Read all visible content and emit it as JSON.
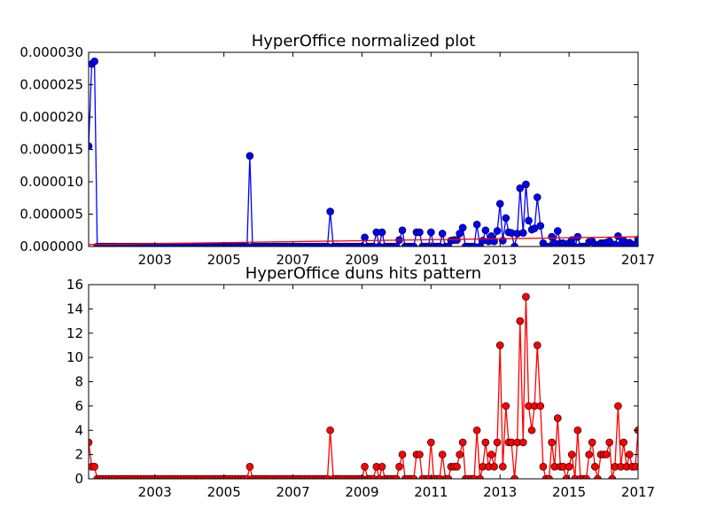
{
  "chart_data": [
    {
      "type": "line",
      "title": "HyperOffice normalized plot",
      "x": [
        2001.08,
        2001.17,
        2001.25,
        2001.33,
        2001.42,
        2001.5,
        2001.58,
        2001.67,
        2001.75,
        2001.83,
        2001.92,
        2002,
        2002.08,
        2002.17,
        2002.25,
        2002.33,
        2002.42,
        2002.5,
        2002.58,
        2002.67,
        2002.75,
        2002.83,
        2002.92,
        2003,
        2003.08,
        2003.17,
        2003.25,
        2003.33,
        2003.42,
        2003.5,
        2003.58,
        2003.67,
        2003.75,
        2003.83,
        2003.92,
        2004,
        2004.08,
        2004.17,
        2004.25,
        2004.33,
        2004.42,
        2004.5,
        2004.58,
        2004.67,
        2004.75,
        2004.83,
        2004.92,
        2005,
        2005.08,
        2005.17,
        2005.25,
        2005.33,
        2005.42,
        2005.5,
        2005.58,
        2005.67,
        2005.75,
        2005.83,
        2005.92,
        2006,
        2006.08,
        2006.17,
        2006.25,
        2006.33,
        2006.42,
        2006.5,
        2006.58,
        2006.67,
        2006.75,
        2006.83,
        2006.92,
        2007,
        2007.08,
        2007.17,
        2007.25,
        2007.33,
        2007.42,
        2007.5,
        2007.58,
        2007.67,
        2007.75,
        2007.83,
        2007.92,
        2008,
        2008.08,
        2008.17,
        2008.25,
        2008.33,
        2008.42,
        2008.5,
        2008.58,
        2008.67,
        2008.75,
        2008.83,
        2008.92,
        2009,
        2009.08,
        2009.17,
        2009.25,
        2009.33,
        2009.42,
        2009.5,
        2009.58,
        2009.67,
        2009.75,
        2009.83,
        2009.92,
        2010,
        2010.08,
        2010.17,
        2010.25,
        2010.33,
        2010.42,
        2010.5,
        2010.58,
        2010.67,
        2010.75,
        2010.83,
        2010.92,
        2011,
        2011.08,
        2011.17,
        2011.25,
        2011.33,
        2011.42,
        2011.5,
        2011.58,
        2011.67,
        2011.75,
        2011.83,
        2011.92,
        2012,
        2012.08,
        2012.17,
        2012.25,
        2012.33,
        2012.42,
        2012.5,
        2012.58,
        2012.67,
        2012.75,
        2012.83,
        2012.92,
        2013,
        2013.08,
        2013.17,
        2013.25,
        2013.33,
        2013.42,
        2013.5,
        2013.58,
        2013.67,
        2013.75,
        2013.83,
        2013.92,
        2014,
        2014.08,
        2014.17,
        2014.25,
        2014.33,
        2014.42,
        2014.5,
        2014.58,
        2014.67,
        2014.75,
        2014.83,
        2014.92,
        2015,
        2015.08,
        2015.17,
        2015.25,
        2015.33,
        2015.42,
        2015.5,
        2015.58,
        2015.67,
        2015.75,
        2015.83,
        2015.92,
        2016,
        2016.08,
        2016.17,
        2016.25,
        2016.33,
        2016.42,
        2016.5,
        2016.58,
        2016.67,
        2016.75,
        2016.83,
        2016.92,
        2017
      ],
      "series": [
        {
          "color": "#0000ff",
          "marker": true,
          "values": [
            1.55e-05,
            2.82e-05,
            2.86e-05,
            0,
            0,
            0,
            0,
            0,
            0,
            0,
            0,
            0,
            0,
            0,
            0,
            0,
            0,
            0,
            0,
            0,
            0,
            0,
            0,
            0,
            0,
            0,
            0,
            0,
            0,
            0,
            0,
            0,
            0,
            0,
            0,
            0,
            0,
            0,
            0,
            0,
            0,
            0,
            0,
            0,
            0,
            0,
            0,
            0,
            0,
            0,
            0,
            0,
            0,
            0,
            0,
            0,
            1.4e-05,
            0,
            0,
            0,
            0,
            0,
            0,
            0,
            0,
            0,
            0,
            0,
            0,
            0,
            0,
            0,
            0,
            0,
            0,
            0,
            0,
            0,
            0,
            0,
            0,
            0,
            0,
            0,
            5.4e-06,
            0,
            0,
            0,
            0,
            0,
            0,
            0,
            0,
            0,
            0,
            0,
            1.4e-06,
            0,
            0,
            0,
            2.2e-06,
            0,
            2.2e-06,
            0,
            0,
            0,
            0,
            0,
            1e-06,
            2.5e-06,
            0,
            0,
            0,
            0,
            2.2e-06,
            2.2e-06,
            0,
            0,
            0,
            2.2e-06,
            0,
            0,
            0,
            2e-06,
            0,
            0,
            9e-07,
            1e-06,
            1e-06,
            2e-06,
            2.9e-06,
            0,
            0,
            0,
            0,
            3.4e-06,
            0,
            9e-07,
            2.5e-06,
            8e-07,
            1.6e-06,
            8e-07,
            2.4e-06,
            6.6e-06,
            9e-07,
            4.4e-06,
            2.2e-06,
            2.1e-06,
            0,
            2e-06,
            9e-06,
            2.1e-06,
            9.6e-06,
            4e-06,
            2.6e-06,
            2.8e-06,
            7.6e-06,
            3.2e-06,
            5e-07,
            0,
            0,
            1.5e-06,
            5e-07,
            2.4e-06,
            5e-07,
            5e-07,
            0,
            5e-07,
            1e-06,
            0,
            1.5e-06,
            0,
            0,
            0,
            7e-07,
            8e-07,
            3e-07,
            0,
            5e-07,
            5e-07,
            6e-07,
            8e-07,
            0,
            3e-07,
            1.6e-06,
            3e-07,
            9e-07,
            3e-07,
            6e-07,
            3e-07,
            3e-07,
            1.1e-06
          ]
        },
        {
          "color": "#ff0000",
          "marker": false,
          "x": [
            2001.08,
            2017
          ],
          "values": [
            3e-07,
            1.5e-06
          ]
        }
      ],
      "xlim": [
        2001.08,
        2017
      ],
      "xticks": [
        2003,
        2005,
        2007,
        2009,
        2011,
        2013,
        2015,
        2017
      ],
      "ylim": [
        0,
        3e-05
      ],
      "yticks": [
        {
          "value": 0,
          "label": "0.000000"
        },
        {
          "value": 5e-06,
          "label": "0.000005"
        },
        {
          "value": 1e-05,
          "label": "0.000010"
        },
        {
          "value": 1.5e-05,
          "label": "0.000015"
        },
        {
          "value": 2e-05,
          "label": "0.000020"
        },
        {
          "value": 2.5e-05,
          "label": "0.000025"
        },
        {
          "value": 3e-05,
          "label": "0.000030"
        }
      ]
    },
    {
      "type": "line",
      "title": "HyperOffice duns hits pattern",
      "x": [
        2001.08,
        2001.17,
        2001.25,
        2001.33,
        2001.42,
        2001.5,
        2001.58,
        2001.67,
        2001.75,
        2001.83,
        2001.92,
        2002,
        2002.08,
        2002.17,
        2002.25,
        2002.33,
        2002.42,
        2002.5,
        2002.58,
        2002.67,
        2002.75,
        2002.83,
        2002.92,
        2003,
        2003.08,
        2003.17,
        2003.25,
        2003.33,
        2003.42,
        2003.5,
        2003.58,
        2003.67,
        2003.75,
        2003.83,
        2003.92,
        2004,
        2004.08,
        2004.17,
        2004.25,
        2004.33,
        2004.42,
        2004.5,
        2004.58,
        2004.67,
        2004.75,
        2004.83,
        2004.92,
        2005,
        2005.08,
        2005.17,
        2005.25,
        2005.33,
        2005.42,
        2005.5,
        2005.58,
        2005.67,
        2005.75,
        2005.83,
        2005.92,
        2006,
        2006.08,
        2006.17,
        2006.25,
        2006.33,
        2006.42,
        2006.5,
        2006.58,
        2006.67,
        2006.75,
        2006.83,
        2006.92,
        2007,
        2007.08,
        2007.17,
        2007.25,
        2007.33,
        2007.42,
        2007.5,
        2007.58,
        2007.67,
        2007.75,
        2007.83,
        2007.92,
        2008,
        2008.08,
        2008.17,
        2008.25,
        2008.33,
        2008.42,
        2008.5,
        2008.58,
        2008.67,
        2008.75,
        2008.83,
        2008.92,
        2009,
        2009.08,
        2009.17,
        2009.25,
        2009.33,
        2009.42,
        2009.5,
        2009.58,
        2009.67,
        2009.75,
        2009.83,
        2009.92,
        2010,
        2010.08,
        2010.17,
        2010.25,
        2010.33,
        2010.42,
        2010.5,
        2010.58,
        2010.67,
        2010.75,
        2010.83,
        2010.92,
        2011,
        2011.08,
        2011.17,
        2011.25,
        2011.33,
        2011.42,
        2011.5,
        2011.58,
        2011.67,
        2011.75,
        2011.83,
        2011.92,
        2012,
        2012.08,
        2012.17,
        2012.25,
        2012.33,
        2012.42,
        2012.5,
        2012.58,
        2012.67,
        2012.75,
        2012.83,
        2012.92,
        2013,
        2013.08,
        2013.17,
        2013.25,
        2013.33,
        2013.42,
        2013.5,
        2013.58,
        2013.67,
        2013.75,
        2013.83,
        2013.92,
        2014,
        2014.08,
        2014.17,
        2014.25,
        2014.33,
        2014.42,
        2014.5,
        2014.58,
        2014.67,
        2014.75,
        2014.83,
        2014.92,
        2015,
        2015.08,
        2015.17,
        2015.25,
        2015.33,
        2015.42,
        2015.5,
        2015.58,
        2015.67,
        2015.75,
        2015.83,
        2015.92,
        2016,
        2016.08,
        2016.17,
        2016.25,
        2016.33,
        2016.42,
        2016.5,
        2016.58,
        2016.67,
        2016.75,
        2016.83,
        2016.92,
        2017
      ],
      "series": [
        {
          "color": "#ff0000",
          "marker": true,
          "values": [
            3,
            1,
            1,
            0,
            0,
            0,
            0,
            0,
            0,
            0,
            0,
            0,
            0,
            0,
            0,
            0,
            0,
            0,
            0,
            0,
            0,
            0,
            0,
            0,
            0,
            0,
            0,
            0,
            0,
            0,
            0,
            0,
            0,
            0,
            0,
            0,
            0,
            0,
            0,
            0,
            0,
            0,
            0,
            0,
            0,
            0,
            0,
            0,
            0,
            0,
            0,
            0,
            0,
            0,
            0,
            0,
            1,
            0,
            0,
            0,
            0,
            0,
            0,
            0,
            0,
            0,
            0,
            0,
            0,
            0,
            0,
            0,
            0,
            0,
            0,
            0,
            0,
            0,
            0,
            0,
            0,
            0,
            0,
            0,
            4,
            0,
            0,
            0,
            0,
            0,
            0,
            0,
            0,
            0,
            0,
            0,
            1,
            0,
            0,
            0,
            1,
            0,
            1,
            0,
            0,
            0,
            0,
            0,
            1,
            2,
            0,
            0,
            0,
            0,
            2,
            2,
            0,
            0,
            0,
            3,
            0,
            0,
            0,
            2,
            0,
            0,
            1,
            1,
            1,
            2,
            3,
            0,
            0,
            0,
            0,
            4,
            0,
            1,
            3,
            1,
            2,
            1,
            3,
            11,
            1,
            6,
            3,
            3,
            0,
            3,
            13,
            3,
            15,
            6,
            4,
            6,
            11,
            6,
            1,
            0,
            0,
            3,
            1,
            5,
            1,
            1,
            0,
            1,
            2,
            0,
            4,
            0,
            0,
            0,
            2,
            3,
            1,
            0,
            2,
            2,
            2,
            3,
            0,
            1,
            6,
            1,
            3,
            1,
            2,
            1,
            1,
            4
          ]
        }
      ],
      "xlim": [
        2001.08,
        2017
      ],
      "xticks": [
        2003,
        2005,
        2007,
        2009,
        2011,
        2013,
        2015,
        2017
      ],
      "ylim": [
        0,
        16
      ],
      "yticks": [
        0,
        2,
        4,
        6,
        8,
        10,
        12,
        14,
        16
      ]
    }
  ]
}
